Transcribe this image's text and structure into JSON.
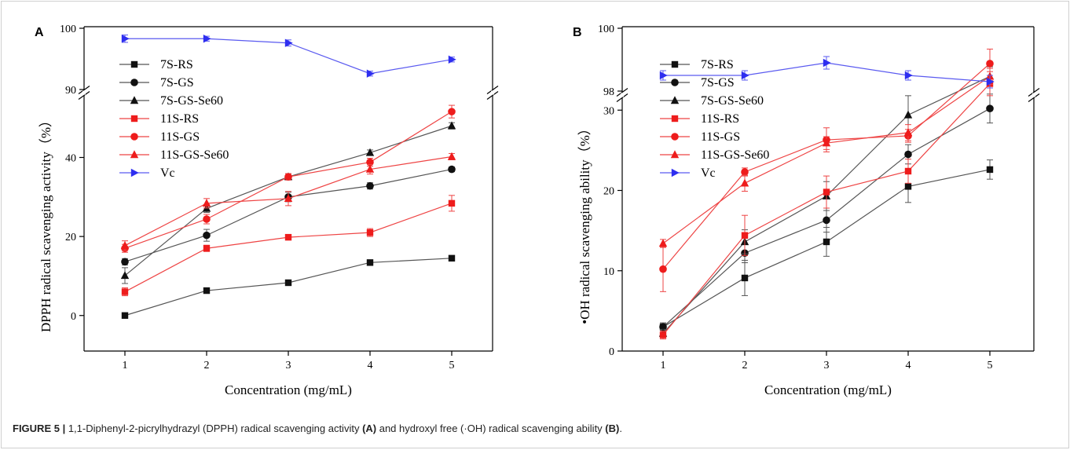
{
  "caption": {
    "label": "FIGURE 5 |",
    "t1": " 1,1-Diphenyl-2-picrylhydrazyl (DPPH) radical scavenging activity ",
    "b1": "(A)",
    "t2": " and hydroxyl free (·OH) radical scavenging ability ",
    "b2": "(B)",
    "t3": "."
  },
  "colors": {
    "black": "#111111",
    "red": "#ee1c1c",
    "blue": "#2e2ef0",
    "lineBlack": "#555555",
    "lineRed": "#ee4444",
    "lineBlue": "#5a5af0"
  },
  "chart_data": [
    {
      "type": "line",
      "panel": "A",
      "xlabel": "Concentration (mg/mL)",
      "ylabel": "DPPH radical scavenging activity（%）",
      "x": [
        1,
        2,
        3,
        4,
        5
      ],
      "x_ticks": [
        1,
        2,
        3,
        4,
        5
      ],
      "axis_break": true,
      "lower_y_range": [
        -8,
        56
      ],
      "lower_y_ticks": [
        0,
        20,
        40
      ],
      "upper_y_range": [
        90,
        100
      ],
      "upper_y_ticks": [
        90,
        100
      ],
      "legend_position": "top-left",
      "series": [
        {
          "name": "7S-RS",
          "color": "black",
          "marker": "square",
          "values": [
            0,
            6.3,
            8.3,
            13.4,
            14.5
          ],
          "errors": [
            0.3,
            0.5,
            0.5,
            0.5,
            0.4
          ]
        },
        {
          "name": "7S-GS",
          "color": "black",
          "marker": "circle",
          "values": [
            13.6,
            20.3,
            30.0,
            32.8,
            37.0
          ],
          "errors": [
            0.8,
            1.5,
            1.2,
            0.8,
            0.6
          ]
        },
        {
          "name": "7S-GS-Se60",
          "color": "black",
          "marker": "triangle",
          "values": [
            10.1,
            27.1,
            35.1,
            41.2,
            48.0
          ],
          "errors": [
            2.0,
            1.0,
            0.8,
            0.7,
            0.8
          ]
        },
        {
          "name": "11S-RS",
          "color": "red",
          "marker": "square",
          "values": [
            6.0,
            17.0,
            19.8,
            21.0,
            28.4
          ],
          "errors": [
            1.0,
            0.8,
            0.6,
            1.0,
            2.0
          ]
        },
        {
          "name": "11S-GS",
          "color": "red",
          "marker": "circle",
          "values": [
            17.0,
            24.4,
            35.1,
            38.8,
            51.6
          ],
          "errors": [
            1.0,
            1.2,
            0.8,
            1.0,
            1.6
          ]
        },
        {
          "name": "11S-GS-Se60",
          "color": "red",
          "marker": "triangle",
          "values": [
            17.7,
            28.4,
            29.6,
            37.0,
            40.2
          ],
          "errors": [
            1.2,
            1.2,
            1.8,
            1.2,
            0.8
          ]
        },
        {
          "name": "Vc",
          "color": "blue",
          "marker": "triangle-right",
          "values": [
            98.3,
            98.3,
            97.6,
            92.6,
            94.9
          ],
          "errors": [
            0.6,
            0.4,
            0.5,
            0.4,
            0.4
          ]
        }
      ]
    },
    {
      "type": "line",
      "panel": "B",
      "xlabel": "Concentration (mg/mL)",
      "ylabel": "•OH radical scavenging ability（%）",
      "x": [
        1,
        2,
        3,
        4,
        5
      ],
      "x_ticks": [
        1,
        2,
        3,
        4,
        5
      ],
      "axis_break": true,
      "lower_y_range": [
        0,
        40
      ],
      "lower_y_ticks": [
        0,
        10,
        20,
        30
      ],
      "upper_y_range": [
        98,
        100
      ],
      "upper_y_ticks": [
        98,
        100
      ],
      "legend_position": "top-left",
      "series": [
        {
          "name": "7S-RS",
          "color": "black",
          "marker": "square",
          "values": [
            3.0,
            9.1,
            13.6,
            20.5,
            22.6
          ],
          "errors": [
            0.5,
            2.2,
            1.8,
            2.0,
            1.2
          ]
        },
        {
          "name": "7S-GS",
          "color": "black",
          "marker": "circle",
          "values": [
            3.0,
            12.2,
            16.3,
            24.5,
            30.2
          ],
          "errors": [
            0.5,
            1.2,
            1.5,
            1.2,
            1.8
          ]
        },
        {
          "name": "7S-GS-Se60",
          "color": "black",
          "marker": "triangle",
          "values": [
            2.2,
            13.6,
            19.3,
            29.4,
            34.2
          ],
          "errors": [
            0.5,
            1.5,
            1.8,
            2.4,
            1.2
          ]
        },
        {
          "name": "11S-RS",
          "color": "red",
          "marker": "square",
          "values": [
            2.0,
            14.4,
            19.8,
            22.4,
            33.3
          ],
          "errors": [
            0.5,
            2.5,
            2.0,
            1.5,
            1.5
          ]
        },
        {
          "name": "11S-GS",
          "color": "red",
          "marker": "circle",
          "values": [
            10.2,
            22.3,
            26.3,
            26.8,
            35.8
          ],
          "errors": [
            2.8,
            0.5,
            1.5,
            0.8,
            1.8
          ]
        },
        {
          "name": "11S-GS-Se60",
          "color": "red",
          "marker": "triangle",
          "values": [
            13.4,
            20.9,
            25.9,
            27.2,
            34.2
          ],
          "errors": [
            0.5,
            1.0,
            0.8,
            1.0,
            1.0
          ]
        },
        {
          "name": "Vc",
          "color": "blue",
          "marker": "triangle-right",
          "values": [
            98.5,
            98.5,
            98.9,
            98.5,
            98.3
          ],
          "errors": [
            0.15,
            0.15,
            0.2,
            0.15,
            0.2
          ]
        }
      ]
    }
  ]
}
